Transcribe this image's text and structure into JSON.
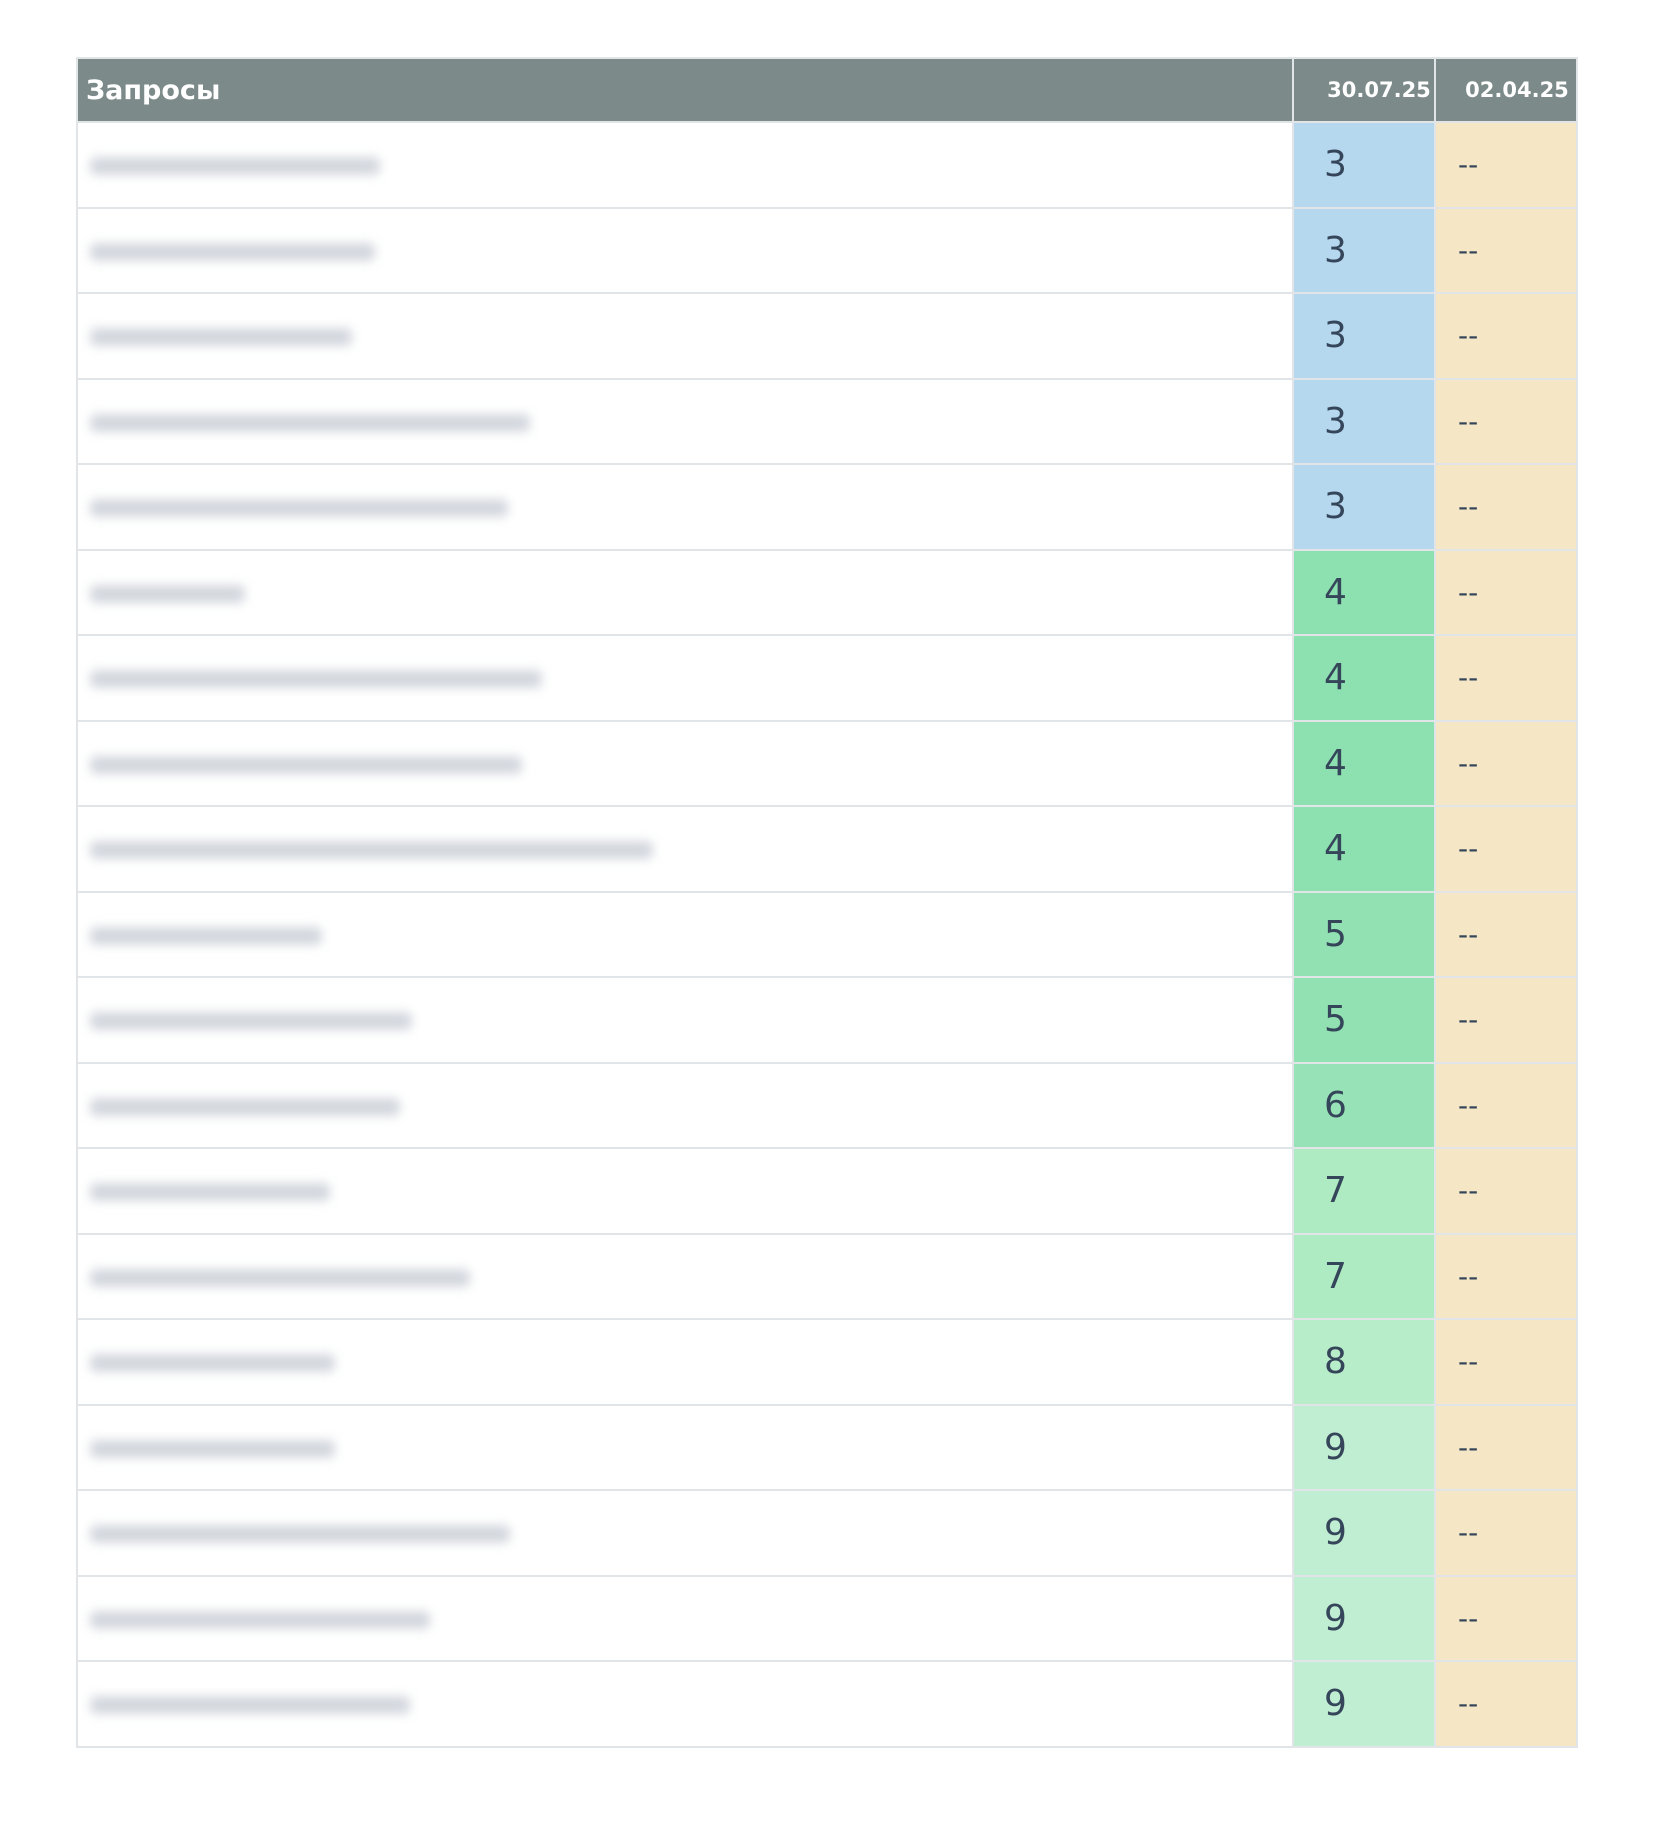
{
  "table": {
    "headers": [
      "Запросы",
      "30.07.25",
      "02.04.25"
    ],
    "rows": [
      {
        "c1": "3",
        "c2": "--",
        "bg": "#b5d8ef"
      },
      {
        "c1": "3",
        "c2": "--",
        "bg": "#b5d8ef"
      },
      {
        "c1": "3",
        "c2": "--",
        "bg": "#b5d8ef"
      },
      {
        "c1": "3",
        "c2": "--",
        "bg": "#b5d8ef"
      },
      {
        "c1": "3",
        "c2": "--",
        "bg": "#b5d8ef"
      },
      {
        "c1": "4",
        "c2": "--",
        "bg": "#8de0b0"
      },
      {
        "c1": "4",
        "c2": "--",
        "bg": "#8de0b0"
      },
      {
        "c1": "4",
        "c2": "--",
        "bg": "#8de0b0"
      },
      {
        "c1": "4",
        "c2": "--",
        "bg": "#8de0b0"
      },
      {
        "c1": "5",
        "c2": "--",
        "bg": "#91e1b3"
      },
      {
        "c1": "5",
        "c2": "--",
        "bg": "#91e1b3"
      },
      {
        "c1": "6",
        "c2": "--",
        "bg": "#97e3b7"
      },
      {
        "c1": "7",
        "c2": "--",
        "bg": "#aeebc3"
      },
      {
        "c1": "7",
        "c2": "--",
        "bg": "#aeebc3"
      },
      {
        "c1": "8",
        "c2": "--",
        "bg": "#b8edca"
      },
      {
        "c1": "9",
        "c2": "--",
        "bg": "#c0eed2"
      },
      {
        "c1": "9",
        "c2": "--",
        "bg": "#c0eed2"
      },
      {
        "c1": "9",
        "c2": "--",
        "bg": "#c0eed2"
      },
      {
        "c1": "9",
        "c2": "--",
        "bg": "#c0eed2"
      }
    ]
  }
}
